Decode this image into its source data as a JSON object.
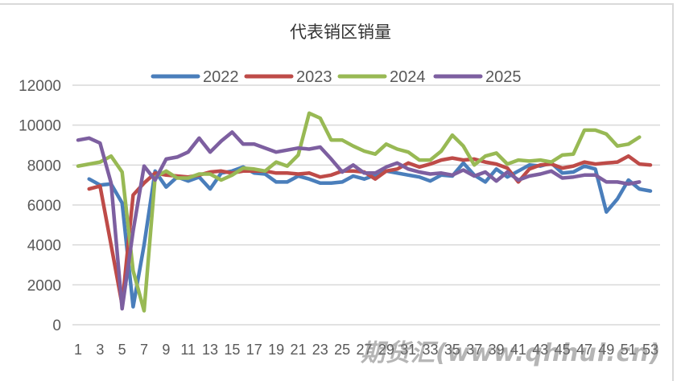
{
  "chart_data": {
    "type": "line",
    "title": "代表销区销量",
    "xlabel": "",
    "ylabel": "",
    "ylim": [
      0,
      12000
    ],
    "yticks": [
      0,
      2000,
      4000,
      6000,
      8000,
      10000,
      12000
    ],
    "x": [
      1,
      2,
      3,
      4,
      5,
      6,
      7,
      8,
      9,
      10,
      11,
      12,
      13,
      14,
      15,
      16,
      17,
      18,
      19,
      20,
      21,
      22,
      23,
      24,
      25,
      26,
      27,
      28,
      29,
      30,
      31,
      32,
      33,
      34,
      35,
      36,
      37,
      38,
      39,
      40,
      41,
      42,
      43,
      44,
      45,
      46,
      47,
      48,
      49,
      50,
      51,
      52,
      53
    ],
    "xtick_labels": [
      "1",
      "3",
      "5",
      "7",
      "9",
      "11",
      "13",
      "15",
      "17",
      "19",
      "21",
      "23",
      "25",
      "27",
      "29",
      "31",
      "33",
      "35",
      "37",
      "39",
      "41",
      "43",
      "45",
      "47",
      "49",
      "51",
      "53"
    ],
    "grid": true,
    "legend_position": "top",
    "series": [
      {
        "name": "2022",
        "color": "#4a7ebb",
        "values": [
          null,
          7300,
          7000,
          7050,
          6100,
          900,
          4000,
          7700,
          6900,
          7400,
          7200,
          7400,
          6800,
          7600,
          7700,
          7900,
          7600,
          7550,
          7150,
          7150,
          7450,
          7300,
          7100,
          7100,
          7150,
          7450,
          7300,
          7500,
          7700,
          7600,
          7500,
          7400,
          7200,
          7500,
          7450,
          8100,
          7500,
          7150,
          7800,
          7400,
          7700,
          8000,
          7950,
          8100,
          7600,
          7650,
          7950,
          7800,
          5650,
          6300,
          7250,
          6800,
          6700
        ]
      },
      {
        "name": "2023",
        "color": "#be4b48",
        "values": [
          null,
          6800,
          6950,
          4000,
          1000,
          6500,
          7100,
          7600,
          7500,
          7450,
          7400,
          7500,
          7650,
          7700,
          7600,
          7700,
          7700,
          7700,
          7600,
          7600,
          7550,
          7600,
          7400,
          7500,
          7700,
          7700,
          7650,
          7300,
          7700,
          7800,
          8100,
          7900,
          8050,
          8250,
          8350,
          8250,
          8300,
          8150,
          8050,
          7850,
          7150,
          7800,
          8000,
          8050,
          7850,
          7950,
          8150,
          8050,
          8100,
          8150,
          8450,
          8050,
          8000
        ]
      },
      {
        "name": "2024",
        "color": "#98b954",
        "values": [
          7950,
          8050,
          8150,
          8450,
          7650,
          2700,
          700,
          7400,
          7700,
          7350,
          7350,
          7550,
          7550,
          7250,
          7500,
          7850,
          7800,
          7700,
          8150,
          7950,
          8500,
          10600,
          10350,
          9250,
          9250,
          8950,
          8700,
          8550,
          9050,
          8800,
          8650,
          8250,
          8250,
          8700,
          9500,
          8950,
          8000,
          8450,
          8600,
          8050,
          8250,
          8200,
          8250,
          8150,
          8500,
          8550,
          9750,
          9750,
          9550,
          8950,
          9050,
          9400,
          null
        ]
      },
      {
        "name": "2025",
        "color": "#7d5fa0",
        "values": [
          9250,
          9350,
          9100,
          7100,
          800,
          4700,
          7950,
          7250,
          8300,
          8400,
          8650,
          9350,
          8650,
          9200,
          9650,
          9050,
          9050,
          8850,
          8650,
          8750,
          8850,
          8800,
          8900,
          8300,
          7650,
          8000,
          7600,
          7600,
          7900,
          8100,
          7800,
          7650,
          7550,
          7600,
          7500,
          7750,
          7450,
          7650,
          7200,
          7650,
          7250,
          7450,
          7550,
          7700,
          7350,
          7400,
          7500,
          7500,
          7150,
          7150,
          7050,
          7150,
          null
        ]
      }
    ]
  },
  "watermark": "期货汇(www.qhhui.cn)"
}
